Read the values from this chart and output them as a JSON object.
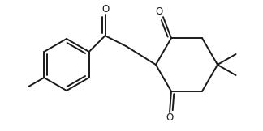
{
  "bg_color": "#ffffff",
  "line_color": "#1a1a1a",
  "line_width": 1.4,
  "figsize": [
    3.24,
    1.62
  ],
  "dpi": 100,
  "xlim": [
    0,
    3.24
  ],
  "ylim": [
    0,
    1.62
  ]
}
